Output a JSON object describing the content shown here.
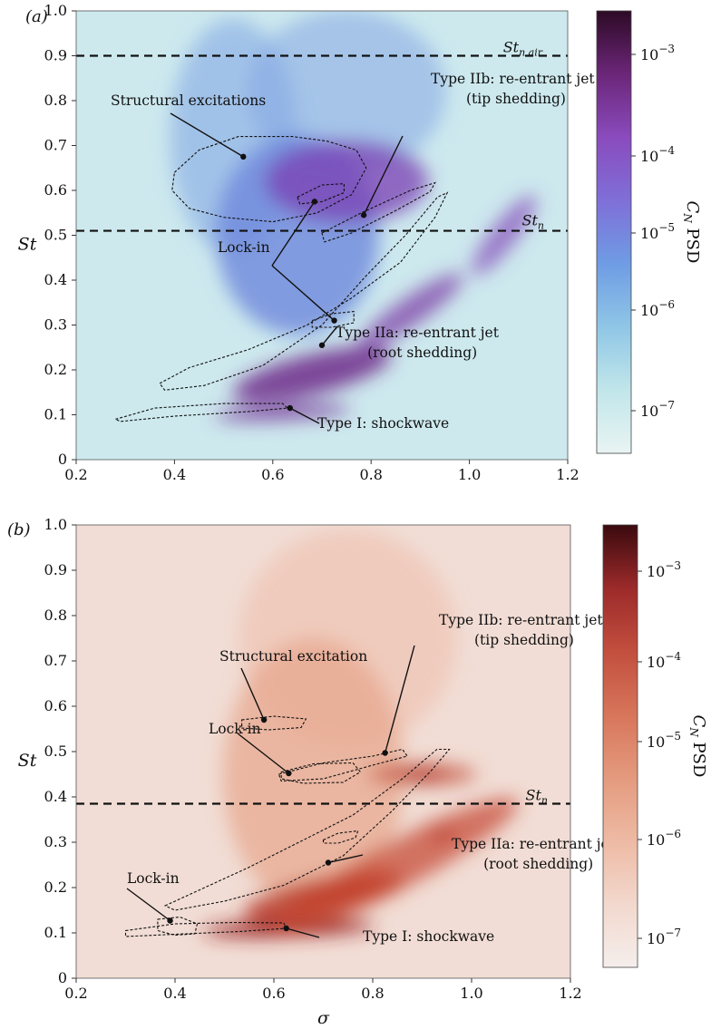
{
  "chart_data": [
    {
      "panel_label": "(a)",
      "type": "heatmap",
      "xlabel": "",
      "ylabel": "St",
      "xlim": [
        0.2,
        1.2
      ],
      "ylim": [
        0.0,
        1.0
      ],
      "x_ticks": [
        "0.2",
        "0.4",
        "0.6",
        "0.8",
        "1.0",
        "1.2"
      ],
      "y_ticks": [
        "0",
        "0.1",
        "0.2",
        "0.3",
        "0.4",
        "0.5",
        "0.6",
        "0.7",
        "0.8",
        "0.9",
        "1.0"
      ],
      "colorbar": {
        "label": "C_N PSD",
        "label_main": "C",
        "label_sub": "N",
        "label_rest": " PSD",
        "scale": "log",
        "ticks": [
          {
            "base": "10",
            "exp": "−3"
          },
          {
            "base": "10",
            "exp": "−4"
          },
          {
            "base": "10",
            "exp": "−5"
          },
          {
            "base": "10",
            "exp": "−6"
          },
          {
            "base": "10",
            "exp": "−7"
          }
        ],
        "colormap": [
          "#e9f4f3",
          "#c1e6ea",
          "#8fc6e6",
          "#6f9ce4",
          "#7f6fd8",
          "#8a4bbd",
          "#6b2678",
          "#2d0a26"
        ]
      },
      "reference_lines": [
        {
          "y": 0.9,
          "label_main": "St",
          "label_sub": "n air"
        },
        {
          "y": 0.51,
          "label_main": "St",
          "label_sub": "n"
        }
      ],
      "annotations": [
        {
          "text": [
            "Structural excitations"
          ],
          "point": [
            0.54,
            0.675
          ]
        },
        {
          "text": [
            "Type IIb: re-entrant jet",
            "(tip shedding)"
          ],
          "point": [
            0.785,
            0.545
          ]
        },
        {
          "text": [
            "Lock-in"
          ],
          "point": [
            0.685,
            0.575
          ]
        },
        {
          "text": [
            "Lock-in"
          ],
          "point": [
            0.725,
            0.31
          ]
        },
        {
          "text": [
            "Type IIa: re-entrant jet",
            "(root shedding)"
          ],
          "point": [
            0.7,
            0.255
          ]
        },
        {
          "text": [
            "Type I: shockwave"
          ],
          "point": [
            0.635,
            0.115
          ]
        }
      ],
      "regions": [
        {
          "name": "structural excitations",
          "polygon": [
            [
              0.4,
              0.64
            ],
            [
              0.45,
              0.69
            ],
            [
              0.53,
              0.72
            ],
            [
              0.64,
              0.72
            ],
            [
              0.71,
              0.71
            ],
            [
              0.77,
              0.69
            ],
            [
              0.79,
              0.65
            ],
            [
              0.76,
              0.59
            ],
            [
              0.69,
              0.55
            ],
            [
              0.6,
              0.53
            ],
            [
              0.5,
              0.54
            ],
            [
              0.43,
              0.56
            ],
            [
              0.395,
              0.6
            ]
          ]
        },
        {
          "name": "lock-in upper",
          "polygon": [
            [
              0.65,
              0.585
            ],
            [
              0.7,
              0.612
            ],
            [
              0.745,
              0.615
            ],
            [
              0.745,
              0.595
            ],
            [
              0.7,
              0.575
            ],
            [
              0.655,
              0.57
            ]
          ]
        },
        {
          "name": "type IIb",
          "polygon": [
            [
              0.7,
              0.505
            ],
            [
              0.78,
              0.55
            ],
            [
              0.88,
              0.6
            ],
            [
              0.93,
              0.617
            ],
            [
              0.92,
              0.597
            ],
            [
              0.85,
              0.555
            ],
            [
              0.76,
              0.505
            ],
            [
              0.705,
              0.485
            ]
          ]
        },
        {
          "name": "type IIa",
          "polygon": [
            [
              0.37,
              0.17
            ],
            [
              0.43,
              0.205
            ],
            [
              0.55,
              0.245
            ],
            [
              0.67,
              0.3
            ],
            [
              0.76,
              0.36
            ],
            [
              0.86,
              0.44
            ],
            [
              0.93,
              0.54
            ],
            [
              0.955,
              0.595
            ],
            [
              0.935,
              0.585
            ],
            [
              0.87,
              0.5
            ],
            [
              0.79,
              0.41
            ],
            [
              0.7,
              0.3
            ],
            [
              0.58,
              0.21
            ],
            [
              0.46,
              0.165
            ],
            [
              0.38,
              0.155
            ]
          ]
        },
        {
          "name": "lock-in lower",
          "polygon": [
            [
              0.68,
              0.31
            ],
            [
              0.72,
              0.325
            ],
            [
              0.765,
              0.33
            ],
            [
              0.765,
              0.305
            ],
            [
              0.72,
              0.295
            ],
            [
              0.68,
              0.295
            ]
          ]
        },
        {
          "name": "type I",
          "polygon": [
            [
              0.28,
              0.09
            ],
            [
              0.36,
              0.115
            ],
            [
              0.5,
              0.125
            ],
            [
              0.62,
              0.125
            ],
            [
              0.63,
              0.115
            ],
            [
              0.55,
              0.107
            ],
            [
              0.4,
              0.097
            ],
            [
              0.29,
              0.085
            ]
          ]
        }
      ]
    },
    {
      "panel_label": "(b)",
      "type": "heatmap",
      "xlabel": "σ",
      "ylabel": "St",
      "xlim": [
        0.2,
        1.2
      ],
      "ylim": [
        0.0,
        1.0
      ],
      "x_ticks": [
        "0.2",
        "0.4",
        "0.6",
        "0.8",
        "1.0",
        "1.2"
      ],
      "y_ticks": [
        "0",
        "0.1",
        "0.2",
        "0.3",
        "0.4",
        "0.5",
        "0.6",
        "0.7",
        "0.8",
        "0.9",
        "1.0"
      ],
      "colorbar": {
        "label": "C_N PSD",
        "label_main": "C",
        "label_sub": "N",
        "label_rest": " PSD",
        "scale": "log",
        "ticks": [
          {
            "base": "10",
            "exp": "−3"
          },
          {
            "base": "10",
            "exp": "−4"
          },
          {
            "base": "10",
            "exp": "−5"
          },
          {
            "base": "10",
            "exp": "−6"
          },
          {
            "base": "10",
            "exp": "−7"
          }
        ],
        "colormap": [
          "#f5eeec",
          "#f2d8cd",
          "#eebaa4",
          "#e49a7e",
          "#d7755a",
          "#c24f3e",
          "#9c2a2a",
          "#3a0a0e"
        ]
      },
      "reference_lines": [
        {
          "y": 0.385,
          "label_main": "St",
          "label_sub": "n"
        }
      ],
      "annotations": [
        {
          "text": [
            "Structural excitation"
          ],
          "point": [
            0.58,
            0.57
          ]
        },
        {
          "text": [
            "Type IIb: re-entrant jet",
            "(tip shedding)"
          ],
          "point": [
            0.825,
            0.497
          ]
        },
        {
          "text": [
            "Lock-in"
          ],
          "point": [
            0.63,
            0.452
          ]
        },
        {
          "text": [
            "Lock-in"
          ],
          "point": [
            0.39,
            0.127
          ]
        },
        {
          "text": [
            "Type IIa: re-entrant jet",
            "(root shedding)"
          ],
          "point": [
            0.71,
            0.255
          ]
        },
        {
          "text": [
            "Type I: shockwave"
          ],
          "point": [
            0.625,
            0.11
          ]
        }
      ],
      "regions": [
        {
          "name": "structural excitation",
          "polygon": [
            [
              0.535,
              0.57
            ],
            [
              0.6,
              0.578
            ],
            [
              0.665,
              0.572
            ],
            [
              0.655,
              0.553
            ],
            [
              0.59,
              0.548
            ],
            [
              0.535,
              0.552
            ]
          ]
        },
        {
          "name": "lock-in upper",
          "polygon": [
            [
              0.615,
              0.455
            ],
            [
              0.68,
              0.473
            ],
            [
              0.76,
              0.475
            ],
            [
              0.775,
              0.455
            ],
            [
              0.74,
              0.432
            ],
            [
              0.66,
              0.43
            ],
            [
              0.615,
              0.44
            ]
          ]
        },
        {
          "name": "type IIb",
          "polygon": [
            [
              0.61,
              0.45
            ],
            [
              0.7,
              0.475
            ],
            [
              0.8,
              0.49
            ],
            [
              0.86,
              0.505
            ],
            [
              0.87,
              0.49
            ],
            [
              0.8,
              0.47
            ],
            [
              0.7,
              0.44
            ],
            [
              0.615,
              0.435
            ]
          ]
        },
        {
          "name": "type IIa",
          "polygon": [
            [
              0.38,
              0.16
            ],
            [
              0.44,
              0.19
            ],
            [
              0.55,
              0.245
            ],
            [
              0.66,
              0.305
            ],
            [
              0.76,
              0.36
            ],
            [
              0.86,
              0.44
            ],
            [
              0.93,
              0.505
            ],
            [
              0.955,
              0.505
            ],
            [
              0.92,
              0.46
            ],
            [
              0.84,
              0.37
            ],
            [
              0.74,
              0.27
            ],
            [
              0.62,
              0.205
            ],
            [
              0.5,
              0.17
            ],
            [
              0.4,
              0.15
            ]
          ]
        },
        {
          "name": "lock-in small",
          "polygon": [
            [
              0.7,
              0.305
            ],
            [
              0.73,
              0.32
            ],
            [
              0.77,
              0.325
            ],
            [
              0.765,
              0.31
            ],
            [
              0.73,
              0.298
            ],
            [
              0.7,
              0.298
            ]
          ]
        },
        {
          "name": "type I",
          "polygon": [
            [
              0.3,
              0.105
            ],
            [
              0.4,
              0.12
            ],
            [
              0.52,
              0.123
            ],
            [
              0.62,
              0.122
            ],
            [
              0.625,
              0.11
            ],
            [
              0.53,
              0.103
            ],
            [
              0.4,
              0.097
            ],
            [
              0.3,
              0.092
            ]
          ]
        },
        {
          "name": "lock-in lower",
          "polygon": [
            [
              0.365,
              0.13
            ],
            [
              0.41,
              0.135
            ],
            [
              0.445,
              0.12
            ],
            [
              0.44,
              0.098
            ],
            [
              0.4,
              0.095
            ],
            [
              0.365,
              0.105
            ]
          ]
        }
      ]
    }
  ]
}
